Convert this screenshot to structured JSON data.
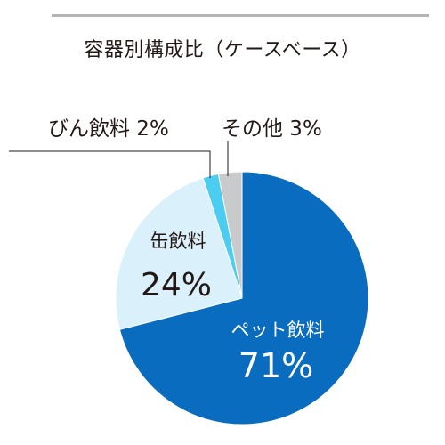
{
  "header": {
    "title": "容器別構成比（ケースベース）"
  },
  "chart_data": {
    "type": "pie",
    "title": "容器別構成比（ケースベース）",
    "start": "12 o'clock",
    "direction": "clockwise",
    "slices": [
      {
        "label": "ペット飲料",
        "value": 71,
        "pct_text": "71%",
        "color": "#0a6cbf"
      },
      {
        "label": "缶飲料",
        "value": 24,
        "pct_text": "24%",
        "color": "#daf0fb"
      },
      {
        "label": "びん飲料",
        "value": 2,
        "pct_text": "2%",
        "color": "#4dccf2"
      },
      {
        "label": "その他",
        "value": 3,
        "pct_text": "3%",
        "color": "#c9cacb"
      }
    ],
    "labels": {
      "pet_name": "ペット飲料",
      "pet_pct": "71%",
      "can_name": "缶飲料",
      "can_pct": "24%",
      "bottle_text": "びん飲料  2%",
      "other_text": "その他 3%"
    }
  }
}
